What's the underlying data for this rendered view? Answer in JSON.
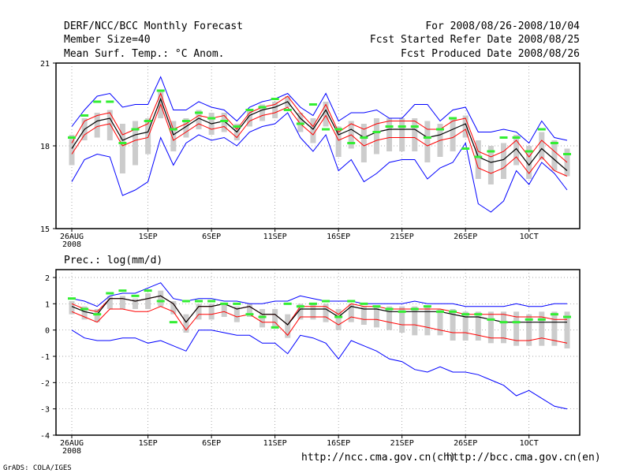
{
  "header": {
    "left": [
      "DERF/NCC/BCC Monthly Forecast",
      "Member Size=40",
      "Mean Surf. Temp.: °C Anom."
    ],
    "right": [
      "For 2008/08/26-2008/10/04",
      "Fcst Started Refer Date 2008/08/25",
      "Fcst Produced Date 2008/08/26"
    ]
  },
  "panel2_label": "Prec.: log(mm/d)",
  "footer": {
    "url_ch": "http://ncc.cma.gov.cn(ch)",
    "url_en": "http://bcc.cma.gov.cn(en)"
  },
  "credit": "GrADS: COLA/IGES",
  "colors": {
    "max_min": "#0000ff",
    "spread": "#ff0000",
    "mean": "#000000",
    "box": "#cccccc",
    "obs": "#33ee33"
  },
  "chart_data": [
    {
      "type": "line",
      "title": "Mean Surf. Temp.: °C Anom.",
      "xlabel": "",
      "ylabel": "",
      "x_ticks": [
        "26AUG\n2008",
        "1SEP",
        "6SEP",
        "11SEP",
        "16SEP",
        "21SEP",
        "26SEP",
        "1OCT"
      ],
      "x_tick_index": [
        0,
        6,
        11,
        16,
        21,
        26,
        31,
        36
      ],
      "y_ticks": [
        15,
        18,
        21
      ],
      "ylim": [
        15,
        21
      ],
      "days": 40,
      "series": [
        {
          "name": "max",
          "values": [
            18.7,
            19.3,
            19.8,
            19.9,
            19.4,
            19.5,
            19.5,
            20.5,
            19.3,
            19.3,
            19.6,
            19.4,
            19.3,
            18.9,
            19.4,
            19.6,
            19.7,
            19.9,
            19.4,
            19.1,
            19.9,
            18.9,
            19.2,
            19.2,
            19.3,
            19.0,
            19.0,
            19.5,
            19.5,
            18.9,
            19.3,
            19.4,
            18.5,
            18.5,
            18.6,
            18.5,
            18.1,
            18.9,
            18.3,
            18.2
          ]
        },
        {
          "name": "upper",
          "values": [
            18.1,
            18.9,
            19.1,
            19.2,
            18.4,
            18.6,
            18.8,
            19.9,
            18.6,
            18.8,
            19.1,
            19.0,
            19.1,
            18.6,
            19.2,
            19.4,
            19.5,
            19.8,
            19.2,
            18.7,
            19.5,
            18.5,
            18.8,
            18.6,
            18.8,
            18.9,
            18.9,
            18.9,
            18.6,
            18.6,
            18.9,
            19.0,
            17.8,
            17.6,
            17.8,
            18.2,
            17.6,
            18.2,
            17.8,
            17.4
          ]
        },
        {
          "name": "mean",
          "values": [
            17.9,
            18.6,
            18.9,
            19.0,
            18.2,
            18.4,
            18.5,
            19.7,
            18.4,
            18.7,
            19.0,
            18.8,
            18.9,
            18.5,
            19.1,
            19.3,
            19.4,
            19.6,
            19.0,
            18.6,
            19.3,
            18.4,
            18.6,
            18.3,
            18.5,
            18.6,
            18.6,
            18.6,
            18.3,
            18.4,
            18.6,
            18.8,
            17.6,
            17.4,
            17.5,
            17.9,
            17.3,
            17.9,
            17.5,
            17.1
          ]
        },
        {
          "name": "lower",
          "values": [
            17.7,
            18.4,
            18.7,
            18.8,
            18.0,
            18.2,
            18.3,
            19.5,
            18.2,
            18.5,
            18.8,
            18.6,
            18.7,
            18.3,
            18.9,
            19.1,
            19.2,
            19.4,
            18.8,
            18.4,
            19.1,
            18.2,
            18.4,
            18.0,
            18.2,
            18.3,
            18.3,
            18.3,
            18.0,
            18.2,
            18.3,
            18.6,
            17.2,
            17.0,
            17.2,
            17.6,
            17.0,
            17.6,
            17.1,
            16.9
          ]
        },
        {
          "name": "min",
          "values": [
            16.7,
            17.5,
            17.7,
            17.6,
            16.2,
            16.4,
            16.7,
            18.3,
            17.3,
            18.1,
            18.4,
            18.2,
            18.3,
            18.0,
            18.5,
            18.7,
            18.8,
            19.2,
            18.3,
            17.8,
            18.4,
            17.1,
            17.5,
            16.7,
            17.0,
            17.4,
            17.5,
            17.5,
            16.8,
            17.2,
            17.4,
            18.1,
            15.9,
            15.6,
            16.0,
            17.1,
            16.6,
            17.4,
            17.0,
            16.4
          ]
        },
        {
          "name": "box_top",
          "values": [
            18.4,
            19.0,
            19.2,
            19.3,
            18.8,
            18.9,
            19.0,
            20.0,
            18.9,
            19.0,
            19.3,
            19.2,
            19.2,
            18.8,
            19.3,
            19.5,
            19.6,
            19.8,
            19.2,
            19.0,
            19.6,
            18.7,
            18.9,
            18.8,
            19.0,
            19.0,
            19.0,
            19.0,
            18.9,
            18.8,
            19.0,
            19.1,
            18.2,
            18.0,
            18.1,
            18.4,
            18.0,
            18.5,
            18.2,
            17.9
          ]
        },
        {
          "name": "box_bottom",
          "values": [
            17.3,
            18.2,
            18.3,
            18.2,
            17.0,
            17.3,
            17.7,
            19.0,
            17.8,
            18.3,
            18.6,
            18.4,
            18.5,
            18.2,
            18.7,
            18.9,
            19.0,
            19.4,
            18.5,
            18.1,
            18.7,
            17.6,
            17.9,
            17.4,
            17.7,
            17.8,
            17.8,
            17.8,
            17.4,
            17.6,
            17.8,
            18.3,
            16.8,
            16.6,
            16.8,
            17.3,
            16.8,
            17.5,
            17.1,
            16.9
          ]
        },
        {
          "name": "obs",
          "values": [
            18.3,
            19.1,
            19.6,
            19.6,
            18.1,
            18.6,
            18.9,
            20.0,
            18.6,
            18.9,
            19.2,
            19.0,
            18.9,
            18.7,
            19.3,
            19.4,
            19.7,
            19.3,
            18.8,
            19.5,
            18.6,
            18.6,
            18.1,
            18.3,
            18.5,
            18.7,
            18.7,
            18.7,
            18.3,
            18.6,
            19.0,
            17.9,
            17.6,
            17.8,
            18.3,
            18.3,
            17.8,
            18.6,
            18.1,
            17.7
          ]
        }
      ]
    },
    {
      "type": "line",
      "title": "Prec.: log(mm/d)",
      "xlabel": "",
      "ylabel": "",
      "x_ticks": [
        "26AUG\n2008",
        "1SEP",
        "6SEP",
        "11SEP",
        "16SEP",
        "21SEP",
        "26SEP",
        "1OCT"
      ],
      "x_tick_index": [
        0,
        6,
        11,
        16,
        21,
        26,
        31,
        36
      ],
      "y_ticks": [
        -4,
        -3,
        -2,
        -1,
        0,
        1,
        2
      ],
      "ylim": [
        -4,
        2.3
      ],
      "days": 40,
      "series": [
        {
          "name": "max",
          "values": [
            1.2,
            1.1,
            0.9,
            1.3,
            1.4,
            1.4,
            1.6,
            1.8,
            1.2,
            1.1,
            1.2,
            1.2,
            1.1,
            1.1,
            1.0,
            1.0,
            1.1,
            1.1,
            1.3,
            1.2,
            1.1,
            1.1,
            1.1,
            1.0,
            1.0,
            1.0,
            1.0,
            1.1,
            1.0,
            1.0,
            1.0,
            0.9,
            0.9,
            0.9,
            0.9,
            1.0,
            0.9,
            0.9,
            1.0,
            1.0
          ]
        },
        {
          "name": "upper",
          "values": [
            1.0,
            0.8,
            0.7,
            1.2,
            1.2,
            1.1,
            1.2,
            1.3,
            1.0,
            0.3,
            0.9,
            0.9,
            1.0,
            0.8,
            0.9,
            0.6,
            0.6,
            0.2,
            0.9,
            0.9,
            0.9,
            0.6,
            1.0,
            0.9,
            0.9,
            0.8,
            0.8,
            0.8,
            0.8,
            0.8,
            0.7,
            0.6,
            0.6,
            0.6,
            0.6,
            0.5,
            0.5,
            0.5,
            0.4,
            0.4
          ]
        },
        {
          "name": "mean",
          "values": [
            0.9,
            0.7,
            0.6,
            1.2,
            1.2,
            1.1,
            1.2,
            1.3,
            1.0,
            0.3,
            0.9,
            0.9,
            1.0,
            0.8,
            0.9,
            0.6,
            0.6,
            0.2,
            0.8,
            0.8,
            0.8,
            0.5,
            0.9,
            0.8,
            0.8,
            0.7,
            0.7,
            0.7,
            0.7,
            0.7,
            0.6,
            0.5,
            0.5,
            0.4,
            0.3,
            0.3,
            0.3,
            0.3,
            0.3,
            0.3
          ]
        },
        {
          "name": "lower",
          "values": [
            0.7,
            0.5,
            0.3,
            0.8,
            0.8,
            0.7,
            0.7,
            0.9,
            0.7,
            0.0,
            0.6,
            0.6,
            0.7,
            0.5,
            0.6,
            0.3,
            0.3,
            -0.2,
            0.5,
            0.5,
            0.5,
            0.2,
            0.5,
            0.4,
            0.4,
            0.3,
            0.2,
            0.2,
            0.1,
            0.0,
            -0.1,
            -0.1,
            -0.2,
            -0.3,
            -0.3,
            -0.4,
            -0.4,
            -0.3,
            -0.4,
            -0.5
          ]
        },
        {
          "name": "min",
          "values": [
            0.0,
            -0.3,
            -0.4,
            -0.4,
            -0.3,
            -0.3,
            -0.5,
            -0.4,
            -0.6,
            -0.8,
            0.0,
            0.0,
            -0.1,
            -0.2,
            -0.2,
            -0.5,
            -0.5,
            -0.9,
            -0.2,
            -0.3,
            -0.5,
            -1.1,
            -0.4,
            -0.6,
            -0.8,
            -1.1,
            -1.2,
            -1.5,
            -1.6,
            -1.4,
            -1.6,
            -1.6,
            -1.7,
            -1.9,
            -2.1,
            -2.5,
            -2.3,
            -2.6,
            -2.9,
            -3.0
          ]
        },
        {
          "name": "box_top",
          "values": [
            1.1,
            0.9,
            0.8,
            1.3,
            1.3,
            1.2,
            1.4,
            1.5,
            1.1,
            0.6,
            1.0,
            1.0,
            1.0,
            0.9,
            1.0,
            0.8,
            0.8,
            0.6,
            1.0,
            1.0,
            1.0,
            0.8,
            1.0,
            0.9,
            0.9,
            0.9,
            0.9,
            0.9,
            0.9,
            0.8,
            0.8,
            0.7,
            0.7,
            0.7,
            0.7,
            0.7,
            0.6,
            0.7,
            0.7,
            0.7
          ]
        },
        {
          "name": "box_bottom",
          "values": [
            0.6,
            0.4,
            0.3,
            0.8,
            0.8,
            0.8,
            0.8,
            0.9,
            0.6,
            -0.1,
            0.4,
            0.4,
            0.5,
            0.3,
            0.5,
            0.1,
            0.1,
            -0.3,
            0.4,
            0.4,
            0.3,
            0.0,
            0.3,
            0.2,
            0.1,
            0.0,
            -0.1,
            -0.2,
            -0.2,
            -0.2,
            -0.4,
            -0.4,
            -0.4,
            -0.5,
            -0.5,
            -0.6,
            -0.6,
            -0.6,
            -0.6,
            -0.7
          ]
        },
        {
          "name": "obs",
          "values": [
            1.2,
            0.8,
            0.6,
            1.4,
            1.5,
            1.3,
            1.5,
            1.1,
            0.3,
            1.1,
            1.1,
            1.1,
            1.0,
            1.0,
            0.6,
            0.5,
            0.1,
            1.0,
            0.9,
            1.0,
            1.1,
            0.5,
            1.1,
            1.0,
            0.9,
            0.8,
            0.7,
            0.8,
            0.9,
            0.7,
            0.7,
            0.6,
            0.6,
            0.4,
            0.3,
            0.3,
            0.4,
            0.4,
            0.6,
            0.5
          ]
        }
      ]
    }
  ]
}
